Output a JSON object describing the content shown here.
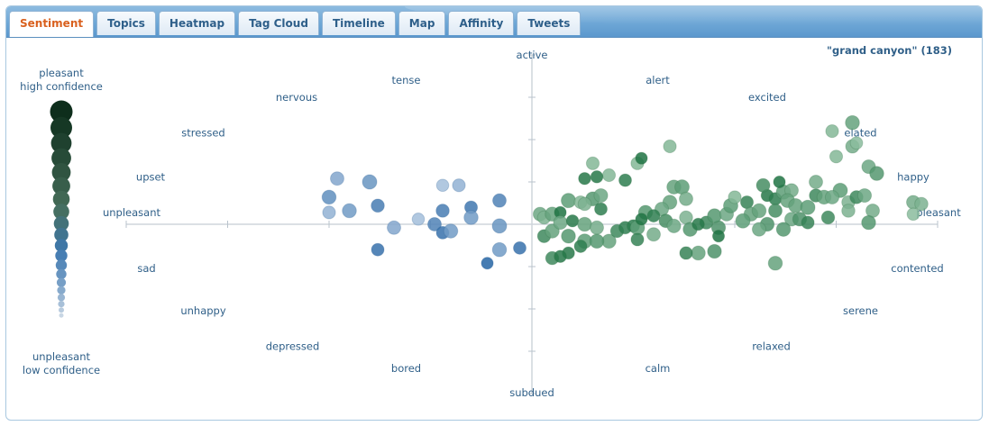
{
  "tabs": [
    {
      "label": "Sentiment",
      "active": true
    },
    {
      "label": "Topics"
    },
    {
      "label": "Heatmap"
    },
    {
      "label": "Tag Cloud"
    },
    {
      "label": "Timeline"
    },
    {
      "label": "Map"
    },
    {
      "label": "Affinity"
    },
    {
      "label": "Tweets"
    }
  ],
  "query_label": "\"grand canyon\" (183)",
  "legend": {
    "top_label": [
      "pleasant",
      "high confidence"
    ],
    "bottom_label": [
      "unpleasant",
      "low confidence"
    ]
  },
  "colors": {
    "accent": "#d9601e",
    "text": "#2f5f88",
    "pleasant": "#2e8b57",
    "unpleasant": "#3f7fc0"
  },
  "chart_data": {
    "type": "scatter",
    "title": "",
    "x_range": [
      -1,
      1
    ],
    "y_range": [
      -1,
      1
    ],
    "grid": false,
    "axis_labels": {
      "top": "active",
      "bottom": "subdued",
      "left": "unpleasant",
      "right": "pleasant"
    },
    "emotion_labels": [
      {
        "text": "tense",
        "x": -0.31,
        "y": 0.85
      },
      {
        "text": "alert",
        "x": 0.31,
        "y": 0.85
      },
      {
        "text": "nervous",
        "x": -0.58,
        "y": 0.75
      },
      {
        "text": "excited",
        "x": 0.58,
        "y": 0.75
      },
      {
        "text": "stressed",
        "x": -0.81,
        "y": 0.54
      },
      {
        "text": "elated",
        "x": 0.81,
        "y": 0.54
      },
      {
        "text": "upset",
        "x": -0.94,
        "y": 0.28
      },
      {
        "text": "happy",
        "x": 0.94,
        "y": 0.28
      },
      {
        "text": "sad",
        "x": -0.95,
        "y": -0.26
      },
      {
        "text": "contented",
        "x": 0.95,
        "y": -0.26
      },
      {
        "text": "unhappy",
        "x": -0.81,
        "y": -0.51
      },
      {
        "text": "serene",
        "x": 0.81,
        "y": -0.51
      },
      {
        "text": "depressed",
        "x": -0.59,
        "y": -0.72
      },
      {
        "text": "relaxed",
        "x": 0.59,
        "y": -0.72
      },
      {
        "text": "bored",
        "x": -0.31,
        "y": -0.85
      },
      {
        "text": "calm",
        "x": 0.31,
        "y": -0.85
      }
    ],
    "points": [
      {
        "x": -0.5,
        "y": 0.16,
        "c": 0.6
      },
      {
        "x": -0.48,
        "y": 0.27,
        "c": 0.4
      },
      {
        "x": -0.4,
        "y": 0.25,
        "c": 0.55
      },
      {
        "x": -0.5,
        "y": 0.07,
        "c": 0.3
      },
      {
        "x": -0.45,
        "y": 0.08,
        "c": 0.5
      },
      {
        "x": -0.38,
        "y": 0.11,
        "c": 0.75
      },
      {
        "x": -0.34,
        "y": -0.02,
        "c": 0.4
      },
      {
        "x": -0.28,
        "y": 0.03,
        "c": 0.2
      },
      {
        "x": -0.24,
        "y": 0.0,
        "c": 0.7
      },
      {
        "x": -0.22,
        "y": -0.05,
        "c": 0.85
      },
      {
        "x": -0.2,
        "y": -0.04,
        "c": 0.5
      },
      {
        "x": -0.22,
        "y": 0.08,
        "c": 0.75
      },
      {
        "x": -0.18,
        "y": 0.23,
        "c": 0.3
      },
      {
        "x": -0.22,
        "y": 0.23,
        "c": 0.2
      },
      {
        "x": -0.15,
        "y": 0.1,
        "c": 0.8
      },
      {
        "x": -0.15,
        "y": 0.04,
        "c": 0.5
      },
      {
        "x": -0.08,
        "y": 0.14,
        "c": 0.7
      },
      {
        "x": -0.08,
        "y": -0.01,
        "c": 0.55
      },
      {
        "x": -0.08,
        "y": -0.15,
        "c": 0.5
      },
      {
        "x": -0.03,
        "y": -0.14,
        "c": 0.85
      },
      {
        "x": -0.11,
        "y": -0.23,
        "c": 0.95
      },
      {
        "x": -0.38,
        "y": -0.15,
        "c": 0.85
      },
      {
        "x": 0.02,
        "y": 0.06,
        "c": 0.45
      },
      {
        "x": 0.03,
        "y": 0.04,
        "c": 0.35
      },
      {
        "x": 0.05,
        "y": 0.06,
        "c": 0.5
      },
      {
        "x": 0.07,
        "y": 0.07,
        "c": 0.95
      },
      {
        "x": 0.09,
        "y": 0.14,
        "c": 0.55
      },
      {
        "x": 0.12,
        "y": 0.13,
        "c": 0.3
      },
      {
        "x": 0.15,
        "y": 0.15,
        "c": 0.6
      },
      {
        "x": 0.17,
        "y": 0.17,
        "c": 0.45
      },
      {
        "x": 0.13,
        "y": 0.27,
        "c": 0.9
      },
      {
        "x": 0.19,
        "y": 0.29,
        "c": 0.3
      },
      {
        "x": 0.23,
        "y": 0.26,
        "c": 0.85
      },
      {
        "x": 0.26,
        "y": 0.36,
        "c": 0.3
      },
      {
        "x": 0.35,
        "y": 0.22,
        "c": 0.5
      },
      {
        "x": 0.37,
        "y": 0.22,
        "c": 0.55
      },
      {
        "x": 0.38,
        "y": 0.15,
        "c": 0.4
      },
      {
        "x": 0.34,
        "y": 0.13,
        "c": 0.5
      },
      {
        "x": 0.32,
        "y": 0.09,
        "c": 0.45
      },
      {
        "x": 0.28,
        "y": 0.07,
        "c": 0.6
      },
      {
        "x": 0.03,
        "y": -0.07,
        "c": 0.75
      },
      {
        "x": 0.05,
        "y": -0.04,
        "c": 0.5
      },
      {
        "x": 0.09,
        "y": -0.07,
        "c": 0.6
      },
      {
        "x": 0.07,
        "y": 0.01,
        "c": 0.45
      },
      {
        "x": 0.1,
        "y": 0.02,
        "c": 0.9
      },
      {
        "x": 0.13,
        "y": 0.0,
        "c": 0.5
      },
      {
        "x": 0.13,
        "y": -0.1,
        "c": 0.55
      },
      {
        "x": 0.16,
        "y": -0.02,
        "c": 0.4
      },
      {
        "x": 0.19,
        "y": -0.1,
        "c": 0.5
      },
      {
        "x": 0.21,
        "y": -0.04,
        "c": 0.75
      },
      {
        "x": 0.23,
        "y": -0.02,
        "c": 0.85
      },
      {
        "x": 0.25,
        "y": -0.01,
        "c": 0.85
      },
      {
        "x": 0.26,
        "y": -0.02,
        "c": 0.55
      },
      {
        "x": 0.27,
        "y": 0.03,
        "c": 0.95
      },
      {
        "x": 0.3,
        "y": -0.06,
        "c": 0.4
      },
      {
        "x": 0.3,
        "y": 0.05,
        "c": 0.85
      },
      {
        "x": 0.33,
        "y": 0.02,
        "c": 0.7
      },
      {
        "x": 0.35,
        "y": -0.01,
        "c": 0.45
      },
      {
        "x": 0.38,
        "y": 0.04,
        "c": 0.35
      },
      {
        "x": 0.39,
        "y": -0.03,
        "c": 0.6
      },
      {
        "x": 0.43,
        "y": 0.01,
        "c": 0.75
      },
      {
        "x": 0.41,
        "y": 0.0,
        "c": 0.9
      },
      {
        "x": 0.46,
        "y": -0.02,
        "c": 0.65
      },
      {
        "x": 0.46,
        "y": -0.07,
        "c": 0.95
      },
      {
        "x": 0.45,
        "y": 0.05,
        "c": 0.6
      },
      {
        "x": 0.48,
        "y": 0.06,
        "c": 0.45
      },
      {
        "x": 0.49,
        "y": 0.11,
        "c": 0.55
      },
      {
        "x": 0.5,
        "y": 0.16,
        "c": 0.3
      },
      {
        "x": 0.53,
        "y": 0.13,
        "c": 0.8
      },
      {
        "x": 0.54,
        "y": 0.06,
        "c": 0.5
      },
      {
        "x": 0.52,
        "y": 0.02,
        "c": 0.55
      },
      {
        "x": 0.56,
        "y": 0.08,
        "c": 0.5
      },
      {
        "x": 0.58,
        "y": 0.0,
        "c": 0.65
      },
      {
        "x": 0.58,
        "y": 0.17,
        "c": 0.9
      },
      {
        "x": 0.6,
        "y": 0.15,
        "c": 0.85
      },
      {
        "x": 0.6,
        "y": 0.08,
        "c": 0.7
      },
      {
        "x": 0.62,
        "y": 0.19,
        "c": 0.55
      },
      {
        "x": 0.64,
        "y": 0.2,
        "c": 0.4
      },
      {
        "x": 0.61,
        "y": 0.25,
        "c": 0.95
      },
      {
        "x": 0.57,
        "y": 0.23,
        "c": 0.7
      },
      {
        "x": 0.63,
        "y": 0.14,
        "c": 0.5
      },
      {
        "x": 0.64,
        "y": 0.03,
        "c": 0.45
      },
      {
        "x": 0.62,
        "y": -0.03,
        "c": 0.6
      },
      {
        "x": 0.56,
        "y": -0.03,
        "c": 0.45
      },
      {
        "x": 0.65,
        "y": 0.11,
        "c": 0.5
      },
      {
        "x": 0.66,
        "y": 0.03,
        "c": 0.65
      },
      {
        "x": 0.68,
        "y": 0.01,
        "c": 0.8
      },
      {
        "x": 0.68,
        "y": 0.1,
        "c": 0.55
      },
      {
        "x": 0.7,
        "y": 0.17,
        "c": 0.75
      },
      {
        "x": 0.72,
        "y": 0.16,
        "c": 0.5
      },
      {
        "x": 0.7,
        "y": 0.25,
        "c": 0.4
      },
      {
        "x": 0.76,
        "y": 0.2,
        "c": 0.55
      },
      {
        "x": 0.74,
        "y": 0.16,
        "c": 0.45
      },
      {
        "x": 0.78,
        "y": 0.13,
        "c": 0.35
      },
      {
        "x": 0.8,
        "y": 0.16,
        "c": 0.75
      },
      {
        "x": 0.82,
        "y": 0.17,
        "c": 0.45
      },
      {
        "x": 0.73,
        "y": 0.04,
        "c": 0.75
      },
      {
        "x": 0.78,
        "y": 0.08,
        "c": 0.35
      },
      {
        "x": 0.84,
        "y": 0.08,
        "c": 0.4
      },
      {
        "x": 0.83,
        "y": 0.01,
        "c": 0.6
      },
      {
        "x": 0.75,
        "y": 0.4,
        "c": 0.3
      },
      {
        "x": 0.79,
        "y": 0.46,
        "c": 0.4
      },
      {
        "x": 0.8,
        "y": 0.48,
        "c": 0.25
      },
      {
        "x": 0.83,
        "y": 0.34,
        "c": 0.45
      },
      {
        "x": 0.79,
        "y": 0.6,
        "c": 0.5
      },
      {
        "x": 0.74,
        "y": 0.55,
        "c": 0.3
      },
      {
        "x": 0.85,
        "y": 0.3,
        "c": 0.6
      },
      {
        "x": 0.94,
        "y": 0.13,
        "c": 0.4
      },
      {
        "x": 0.96,
        "y": 0.12,
        "c": 0.35
      },
      {
        "x": 0.94,
        "y": 0.06,
        "c": 0.25
      },
      {
        "x": 0.6,
        "y": -0.23,
        "c": 0.5
      },
      {
        "x": 0.45,
        "y": -0.16,
        "c": 0.65
      },
      {
        "x": 0.41,
        "y": -0.17,
        "c": 0.5
      },
      {
        "x": 0.38,
        "y": -0.17,
        "c": 0.8
      },
      {
        "x": 0.26,
        "y": -0.09,
        "c": 0.8
      },
      {
        "x": 0.16,
        "y": -0.1,
        "c": 0.6
      },
      {
        "x": 0.12,
        "y": -0.13,
        "c": 0.85
      },
      {
        "x": 0.09,
        "y": -0.17,
        "c": 0.9
      },
      {
        "x": 0.05,
        "y": -0.2,
        "c": 0.75
      },
      {
        "x": 0.07,
        "y": -0.19,
        "c": 0.9
      },
      {
        "x": 0.13,
        "y": 0.12,
        "c": 0.35
      },
      {
        "x": 0.17,
        "y": 0.09,
        "c": 0.85
      },
      {
        "x": 0.15,
        "y": 0.36,
        "c": 0.3
      },
      {
        "x": 0.34,
        "y": 0.46,
        "c": 0.3
      },
      {
        "x": 0.27,
        "y": 0.39,
        "c": 0.95
      },
      {
        "x": 0.16,
        "y": 0.28,
        "c": 0.9
      }
    ]
  }
}
